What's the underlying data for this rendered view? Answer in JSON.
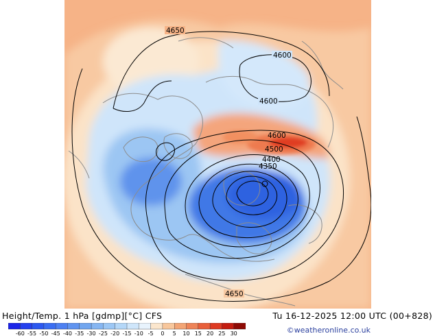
{
  "title": "Height/Temp. 1 hPa [gdmp][°C] CFS",
  "valid_time": "Tu 16-12-2025 12:00 UTC (00+828)",
  "copyright": "©weatheronline.co.uk",
  "contour_labels": [
    "4650",
    "4600",
    "4600",
    "4600",
    "4500",
    "4400",
    "4350",
    "4650"
  ],
  "colorbar": {
    "labels": [
      "-60",
      "-55",
      "-50",
      "-45",
      "-40",
      "-35",
      "-30",
      "-25",
      "-20",
      "-15",
      "-10",
      "-5",
      "0",
      "5",
      "10",
      "15",
      "20",
      "25",
      "30"
    ],
    "colors": [
      "#1b24e8",
      "#2540ee",
      "#2c58f0",
      "#3a6df2",
      "#4d80f2",
      "#6094f0",
      "#72a6ef",
      "#86b6f2",
      "#9cc7f5",
      "#b4d7f8",
      "#cfe6fb",
      "#e8f3fd",
      "#fbe6cd",
      "#f8c79c",
      "#f3a575",
      "#ee8458",
      "#e85f3a",
      "#de3a22",
      "#c41c10",
      "#8e0a05"
    ]
  },
  "colors": {
    "warm": "#f4a77c",
    "warm_light": "#f8cba5",
    "cold": "#3c74e0",
    "cold_light": "#a8cef5",
    "contour": "#000000",
    "coastline": "#8a8a8a",
    "background": "#ffffff"
  }
}
